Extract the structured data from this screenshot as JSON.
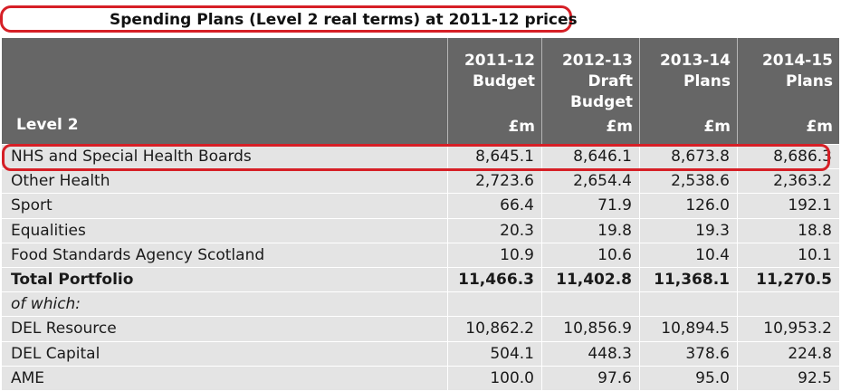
{
  "title": "Spending Plans (Level 2 real terms) at 2011-12 prices",
  "header": {
    "row_label": "Level 2",
    "columns": [
      {
        "lines": [
          "2011-12",
          "Budget"
        ],
        "unit": "£m"
      },
      {
        "lines": [
          "2012-13",
          "Draft",
          "Budget"
        ],
        "unit": "£m"
      },
      {
        "lines": [
          "2013-14",
          "Plans"
        ],
        "unit": "£m"
      },
      {
        "lines": [
          "2014-15",
          "Plans"
        ],
        "unit": "£m"
      }
    ]
  },
  "rows": [
    {
      "label": "NHS and Special Health Boards",
      "values": [
        "8,645.1",
        "8,646.1",
        "8,673.8",
        "8,686.3"
      ]
    },
    {
      "label": "Other Health",
      "values": [
        "2,723.6",
        "2,654.4",
        "2,538.6",
        "2,363.2"
      ]
    },
    {
      "label": "Sport",
      "values": [
        "66.4",
        "71.9",
        "126.0",
        "192.1"
      ]
    },
    {
      "label": "Equalities",
      "values": [
        "20.3",
        "19.8",
        "19.3",
        "18.8"
      ]
    },
    {
      "label": "Food Standards Agency Scotland",
      "values": [
        "10.9",
        "10.6",
        "10.4",
        "10.1"
      ]
    },
    {
      "label": "Total Portfolio",
      "values": [
        "11,466.3",
        "11,402.8",
        "11,368.1",
        "11,270.5"
      ]
    },
    {
      "label": "of which:",
      "values": [
        "",
        "",
        "",
        ""
      ]
    },
    {
      "label": "DEL Resource",
      "values": [
        "10,862.2",
        "10,856.9",
        "10,894.5",
        "10,953.2"
      ]
    },
    {
      "label": "DEL Capital",
      "values": [
        "504.1",
        "448.3",
        "378.6",
        "224.8"
      ]
    },
    {
      "label": "AME",
      "values": [
        "100.0",
        "97.6",
        "95.0",
        "92.5"
      ]
    }
  ],
  "colors": {
    "header_bg": "#666666",
    "row_bg": "#e4e4e4",
    "highlight": "#d61f26"
  }
}
